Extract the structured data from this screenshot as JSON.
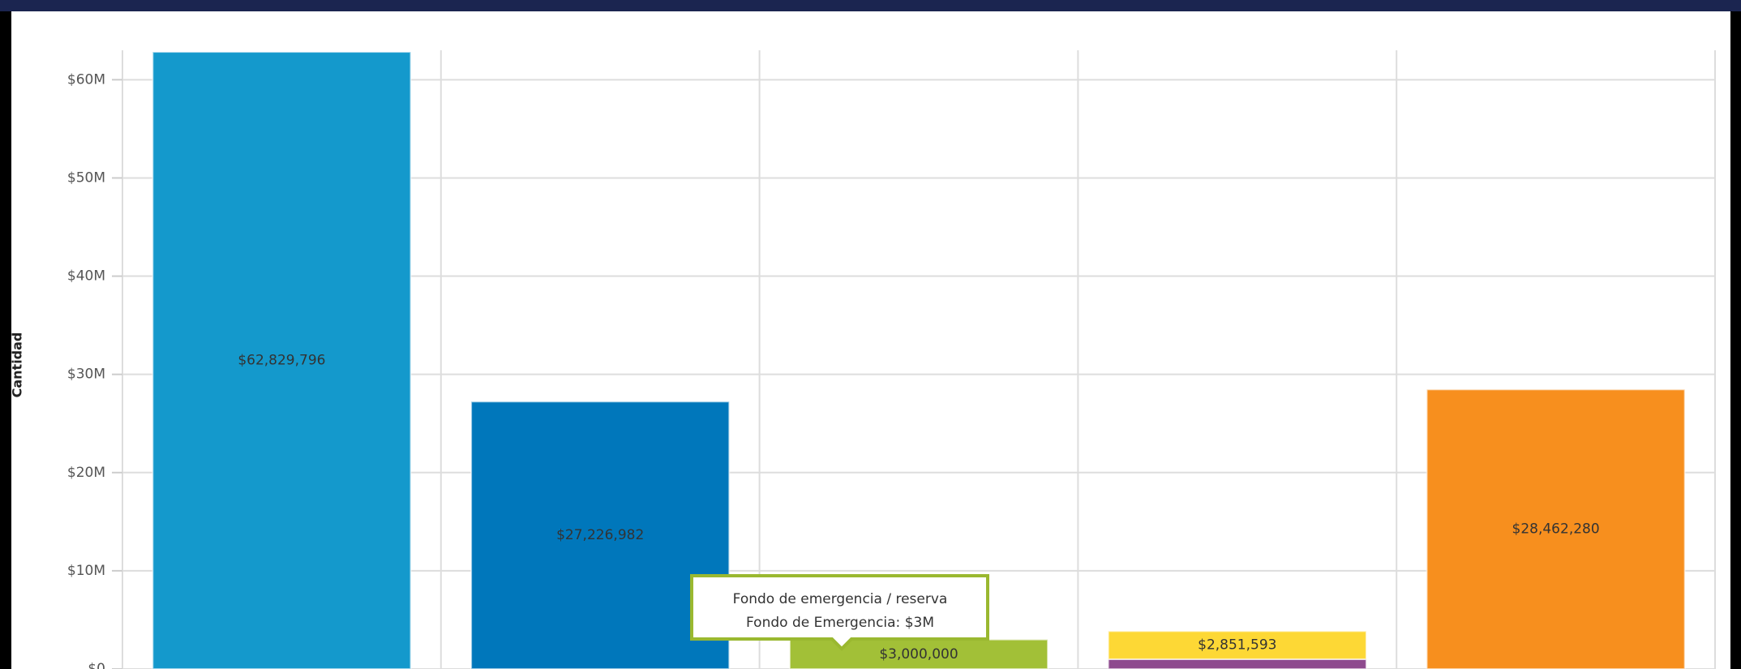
{
  "chart_data": {
    "type": "bar",
    "y_label": "Cantidad",
    "categories": [
      null,
      null,
      null,
      null,
      null
    ],
    "stacked": true,
    "series": [
      {
        "color": "#1499cc",
        "values": [
          62829796,
          null,
          null,
          null,
          null
        ],
        "value_labels": [
          "$62,829,796",
          null,
          null,
          null,
          null
        ]
      },
      {
        "color": "#0077bb",
        "values": [
          null,
          27226982,
          null,
          null,
          null
        ],
        "value_labels": [
          null,
          "$27,226,982",
          null,
          null,
          null
        ]
      },
      {
        "color": "#a2c037",
        "values": [
          null,
          null,
          3000000,
          null,
          null
        ],
        "value_labels": [
          null,
          null,
          "$3,000,000",
          null,
          null
        ]
      },
      {
        "color": "#8e4a8e",
        "values": [
          null,
          null,
          null,
          1000000,
          null
        ]
      },
      {
        "color": "#fdd835",
        "values": [
          null,
          null,
          null,
          2851593,
          null
        ],
        "value_labels": [
          null,
          null,
          null,
          "$2,851,593",
          null
        ]
      },
      {
        "color": "#f78f1e",
        "values": [
          null,
          null,
          null,
          null,
          28462280
        ],
        "value_labels": [
          null,
          null,
          null,
          null,
          "$28,462,280"
        ]
      }
    ],
    "ylim": [
      0,
      63000000
    ],
    "yticks": [
      {
        "value": 0,
        "label": "$0"
      },
      {
        "value": 10000000,
        "label": "$10M"
      },
      {
        "value": 20000000,
        "label": "$20M"
      },
      {
        "value": 30000000,
        "label": "$30M"
      },
      {
        "value": 40000000,
        "label": "$40M"
      },
      {
        "value": 50000000,
        "label": "$50M"
      },
      {
        "value": 60000000,
        "label": "$60M"
      }
    ],
    "grid": true,
    "annotations": [
      "Fondo de emergencia / reserva",
      "Fondo de Emergencia: $3M"
    ]
  }
}
